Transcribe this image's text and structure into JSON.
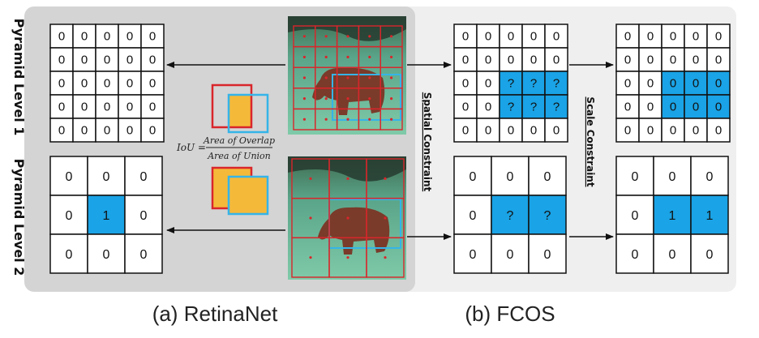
{
  "labels": {
    "pyramid_level_1": "Pyramid Level 1",
    "pyramid_level_2": "Pyramid Level 2",
    "spatial_constraint": "Spatial Constraint",
    "scale_constraint": "Scale Constraint",
    "caption_a": "(a) RetinaNet",
    "caption_b": "(b) FCOS",
    "iou_lhs": "IoU =",
    "iou_numerator": "Area of Overlap",
    "iou_denominator": "Area of Union"
  },
  "grids": {
    "retinanet_l1": [
      [
        "0",
        "0",
        "0",
        "0",
        "0"
      ],
      [
        "0",
        "0",
        "0",
        "0",
        "0"
      ],
      [
        "0",
        "0",
        "0",
        "0",
        "0"
      ],
      [
        "0",
        "0",
        "0",
        "0",
        "0"
      ],
      [
        "0",
        "0",
        "0",
        "0",
        "0"
      ]
    ],
    "retinanet_l2": [
      [
        "0",
        "0",
        "0"
      ],
      [
        "0",
        "1",
        "0"
      ],
      [
        "0",
        "0",
        "0"
      ]
    ],
    "fcos_spatial_l1": [
      [
        "0",
        "0",
        "0",
        "0",
        "0"
      ],
      [
        "0",
        "0",
        "0",
        "0",
        "0"
      ],
      [
        "0",
        "0",
        "?",
        "?",
        "?"
      ],
      [
        "0",
        "0",
        "?",
        "?",
        "?"
      ],
      [
        "0",
        "0",
        "0",
        "0",
        "0"
      ]
    ],
    "fcos_spatial_l2": [
      [
        "0",
        "0",
        "0"
      ],
      [
        "0",
        "?",
        "?"
      ],
      [
        "0",
        "0",
        "0"
      ]
    ],
    "fcos_scale_l1": [
      [
        "0",
        "0",
        "0",
        "0",
        "0"
      ],
      [
        "0",
        "0",
        "0",
        "0",
        "0"
      ],
      [
        "0",
        "0",
        "0",
        "0",
        "0"
      ],
      [
        "0",
        "0",
        "0",
        "0",
        "0"
      ],
      [
        "0",
        "0",
        "0",
        "0",
        "0"
      ]
    ],
    "fcos_scale_l2": [
      [
        "0",
        "0",
        "0"
      ],
      [
        "0",
        "1",
        "1"
      ],
      [
        "0",
        "0",
        "0"
      ]
    ]
  },
  "highlights": {
    "retinanet_l1": [],
    "retinanet_l2": [
      [
        1,
        1
      ]
    ],
    "fcos_spatial_l1": [
      [
        2,
        2
      ],
      [
        2,
        3
      ],
      [
        2,
        4
      ],
      [
        3,
        2
      ],
      [
        3,
        3
      ],
      [
        3,
        4
      ]
    ],
    "fcos_spatial_l2": [
      [
        1,
        1
      ],
      [
        1,
        2
      ]
    ],
    "fcos_scale_l1": [
      [
        2,
        2
      ],
      [
        2,
        3
      ],
      [
        2,
        4
      ],
      [
        3,
        2
      ],
      [
        3,
        3
      ],
      [
        3,
        4
      ]
    ],
    "fcos_scale_l2": [
      [
        1,
        1
      ],
      [
        1,
        2
      ]
    ]
  },
  "colors": {
    "highlight": "#1aa3e6",
    "gray_panel": "#d4d4d4",
    "light_panel": "#efefef",
    "grid_line": "#111111",
    "anchor_red": "#d9262b",
    "gt_cyan": "#35b4e8",
    "overlap_yellow": "#f5b93a"
  }
}
